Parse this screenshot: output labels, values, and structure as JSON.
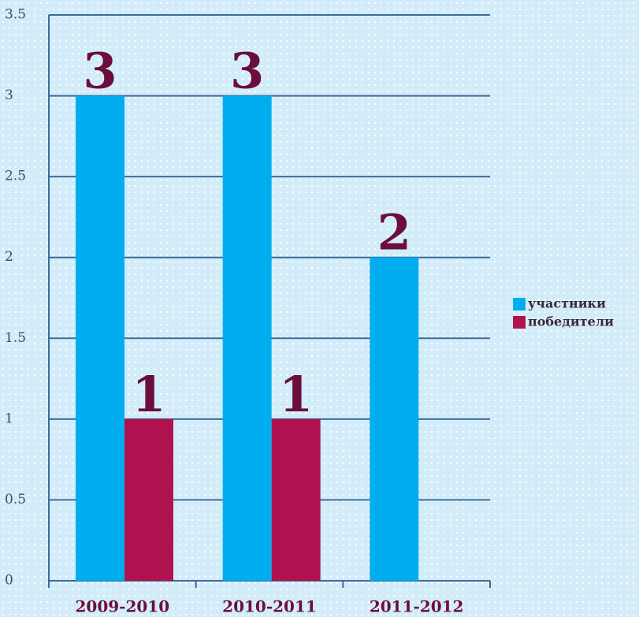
{
  "chart_data": {
    "type": "bar",
    "categories": [
      "2009-2010",
      "2010-2011",
      "2011-2012"
    ],
    "series": [
      {
        "name": "участники",
        "color": "#00aeef",
        "values": [
          3,
          3,
          2
        ]
      },
      {
        "name": "победители",
        "color": "#b0124f",
        "values": [
          1,
          1,
          null
        ]
      }
    ],
    "ylim": [
      0,
      3.5
    ],
    "yticks": [
      0,
      0.5,
      1,
      1.5,
      2,
      2.5,
      3,
      3.5
    ],
    "grid": true,
    "legend": "right"
  }
}
